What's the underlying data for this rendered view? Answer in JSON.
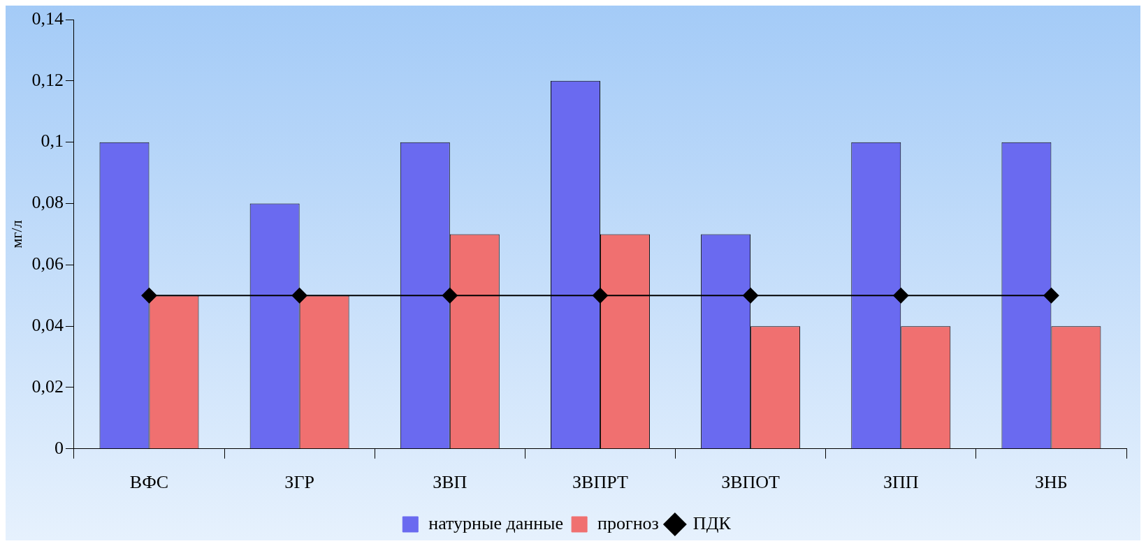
{
  "chart_data": {
    "type": "bar",
    "ylabel": "мг/л",
    "categories": [
      "ВФС",
      "ЗГР",
      "ЗВП",
      "ЗВПРТ",
      "ЗВПОТ",
      "ЗПП",
      "ЗНБ"
    ],
    "series": [
      {
        "name": "натурные данные",
        "color": "#6a6af0",
        "values": [
          0.1,
          0.08,
          0.1,
          0.12,
          0.07,
          0.1,
          0.1
        ]
      },
      {
        "name": "прогноз",
        "color": "#f07070",
        "values": [
          0.05,
          0.05,
          0.07,
          0.07,
          0.04,
          0.04,
          0.04
        ]
      },
      {
        "name": "ПДК",
        "type": "line",
        "color": "#000000",
        "marker": "diamond",
        "values": [
          0.05,
          0.05,
          0.05,
          0.05,
          0.05,
          0.05,
          0.05
        ]
      }
    ],
    "ylim": [
      0,
      0.14
    ],
    "yticks": [
      0,
      {
        "value": 0.02,
        "label": "0,02"
      },
      {
        "value": 0.04,
        "label": "0,04"
      },
      {
        "value": 0.06,
        "label": "0,06"
      },
      {
        "value": 0.08,
        "label": "0,08"
      },
      {
        "value": 0.1,
        "label": "0,1"
      },
      {
        "value": 0.12,
        "label": "0,12"
      },
      {
        "value": 0.14,
        "label": "0,14"
      }
    ],
    "grid": false,
    "legend": "bottom"
  }
}
